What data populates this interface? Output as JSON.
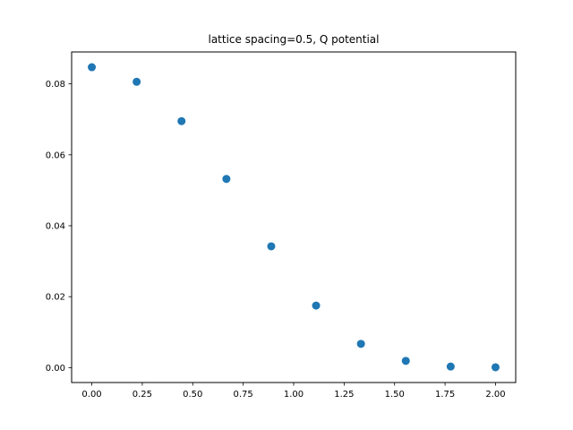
{
  "chart_data": {
    "type": "scatter",
    "title": "lattice spacing=0.5, Q potential",
    "xlabel": "",
    "ylabel": "",
    "x": [
      0.0,
      0.2222,
      0.4444,
      0.6667,
      0.8889,
      1.1111,
      1.3333,
      1.5556,
      1.7778,
      2.0
    ],
    "y": [
      0.0847,
      0.0806,
      0.0695,
      0.0532,
      0.0342,
      0.0175,
      0.0067,
      0.0019,
      0.0003,
      0.0001
    ],
    "xlim": [
      -0.1,
      2.1
    ],
    "ylim": [
      -0.0042,
      0.089
    ],
    "x_ticks": [
      0.0,
      0.25,
      0.5,
      0.75,
      1.0,
      1.25,
      1.5,
      1.75,
      2.0
    ],
    "x_tick_labels": [
      "0.00",
      "0.25",
      "0.50",
      "0.75",
      "1.00",
      "1.25",
      "1.50",
      "1.75",
      "2.00"
    ],
    "y_ticks": [
      0.0,
      0.02,
      0.04,
      0.06,
      0.08
    ],
    "y_tick_labels": [
      "0.00",
      "0.02",
      "0.04",
      "0.06",
      "0.08"
    ],
    "marker_color": "#1f77b4",
    "grid": false,
    "legend": "none"
  }
}
